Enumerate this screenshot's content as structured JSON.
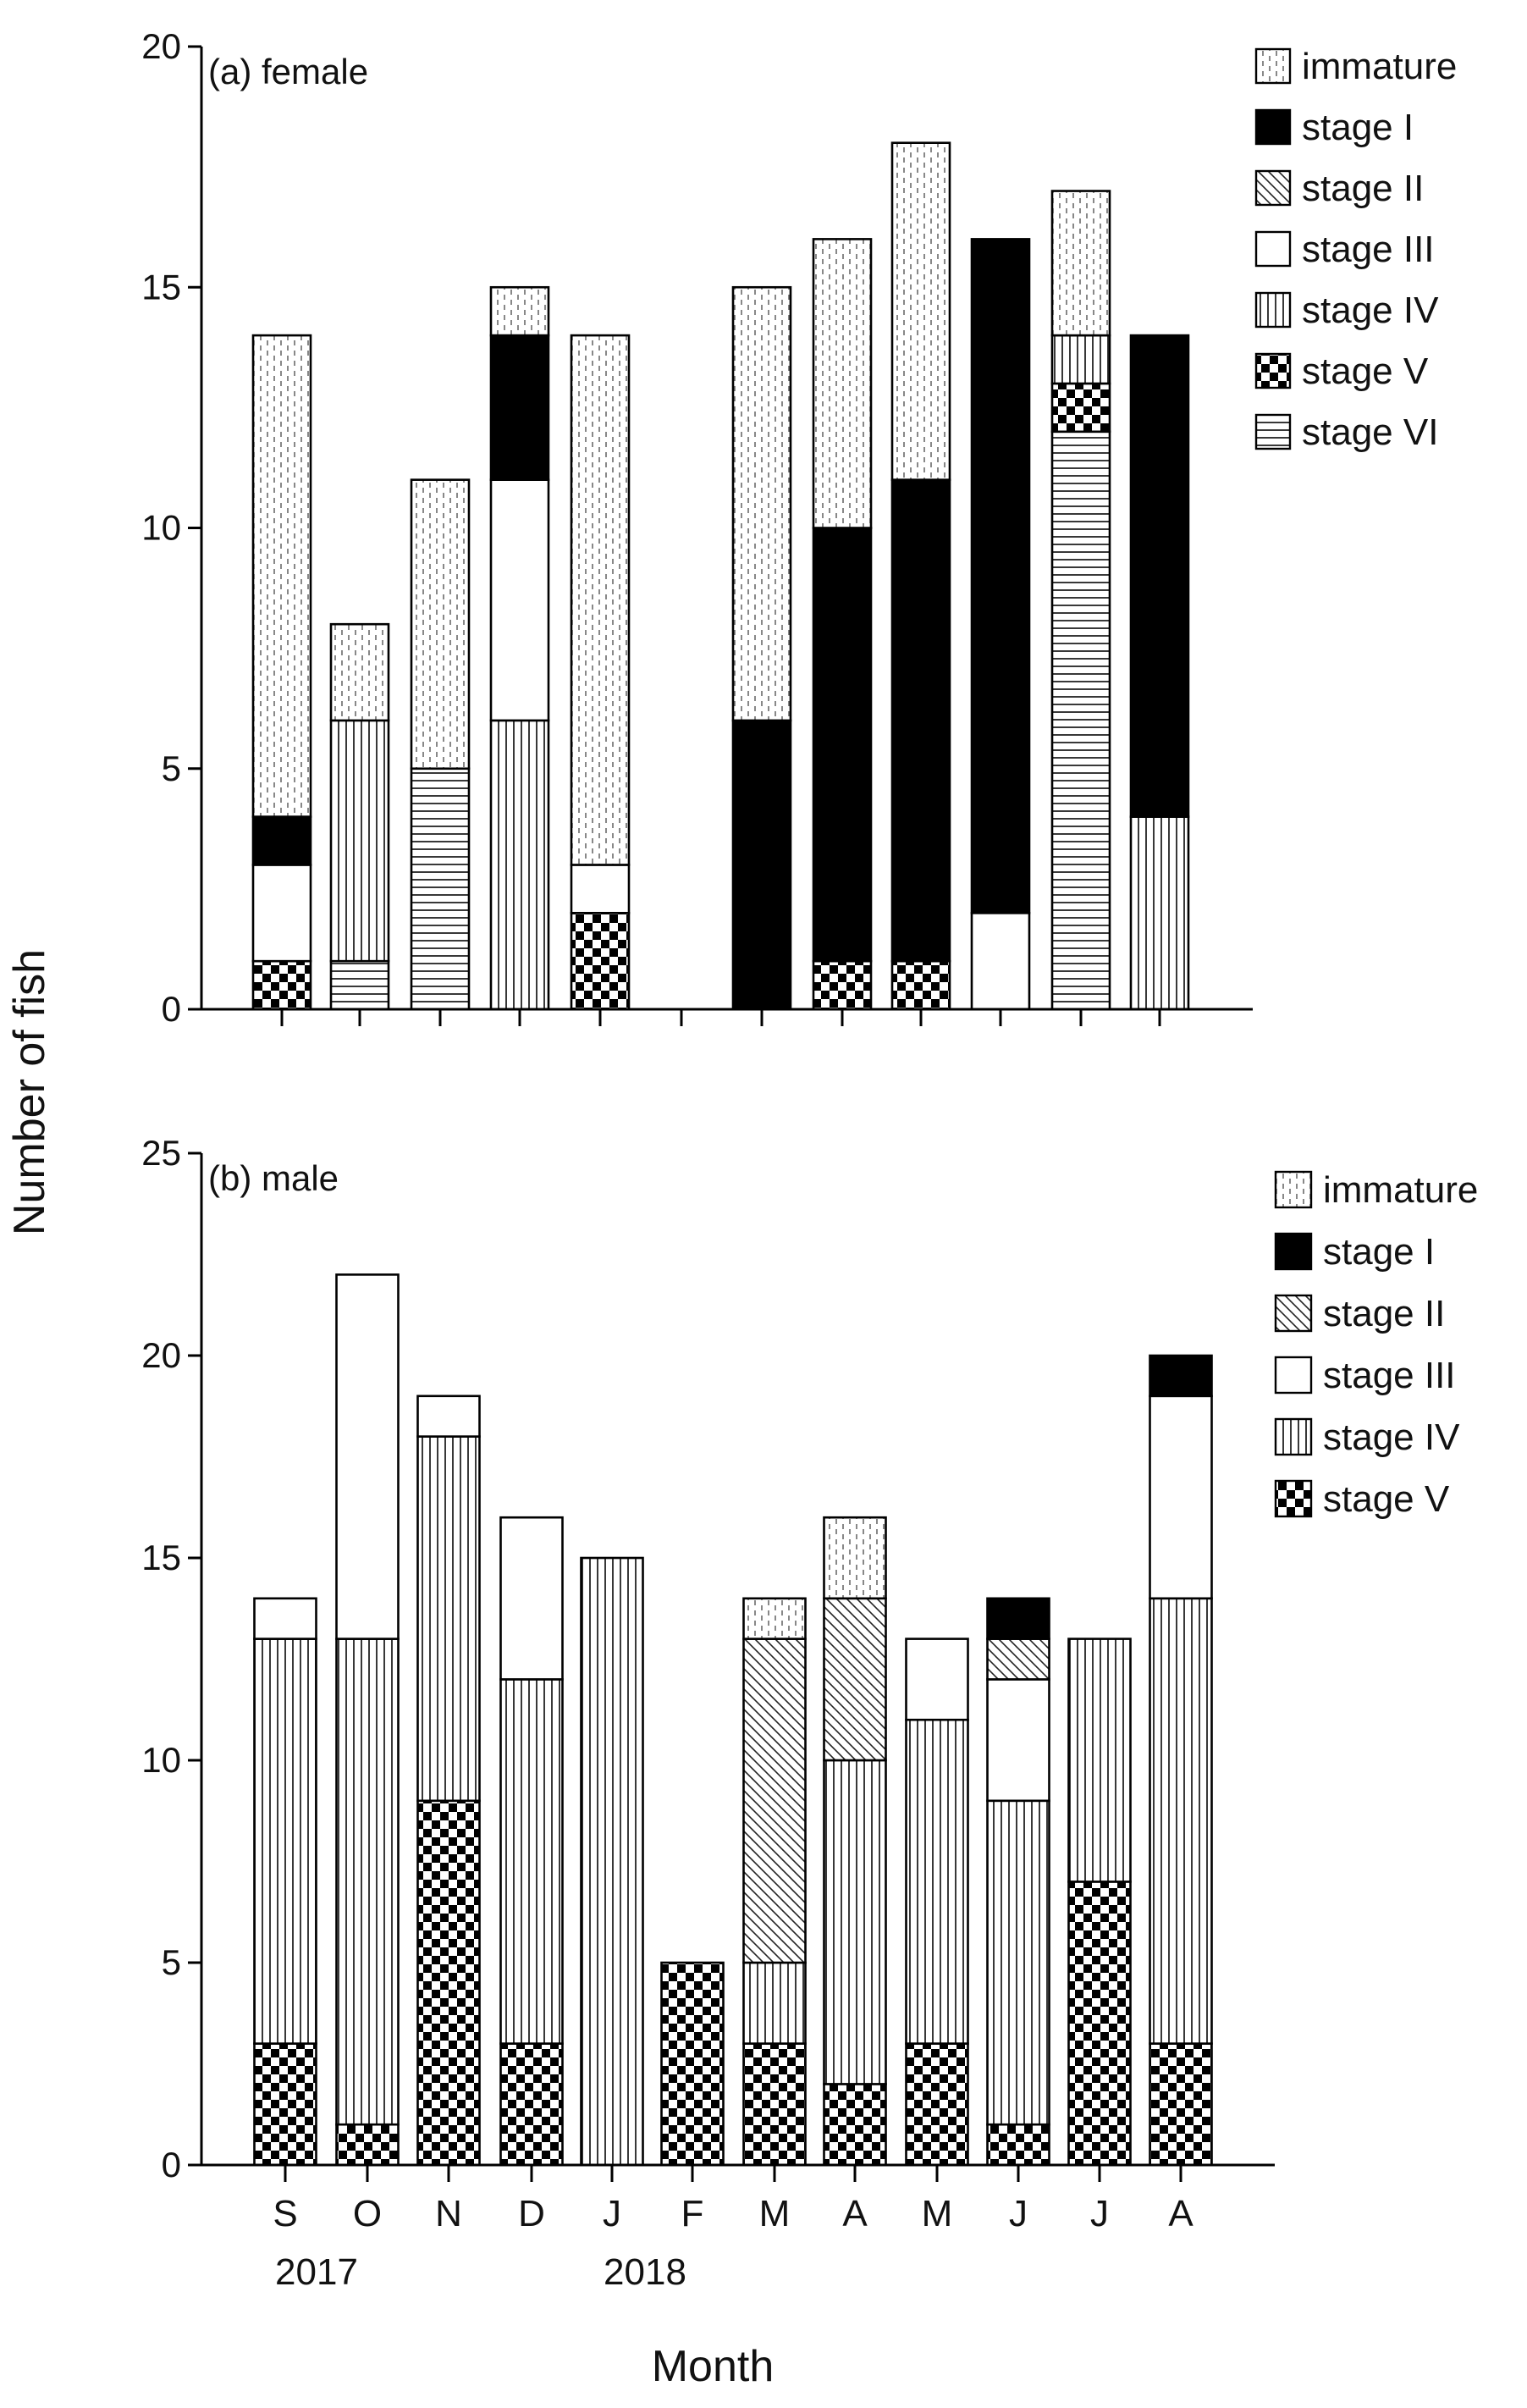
{
  "figure": {
    "y_axis_title": "Number of fish",
    "x_axis_title": "Month",
    "months": [
      "S",
      "O",
      "N",
      "D",
      "J",
      "F",
      "M",
      "A",
      "M",
      "J",
      "J",
      "A"
    ],
    "years": [
      "2017",
      "2018"
    ]
  },
  "chart_data": [
    {
      "type": "bar",
      "stacked": true,
      "panel_label": "(a) female",
      "ylabel": "Number of fish",
      "xlabel": "Month",
      "ylim": [
        0,
        20
      ],
      "yticks": [
        0,
        5,
        10,
        15,
        20
      ],
      "categories": [
        "S",
        "O",
        "N",
        "D",
        "J",
        "F",
        "M",
        "A",
        "M",
        "J",
        "J",
        "A"
      ],
      "legend_position": "top-right",
      "series": [
        {
          "name": "stage VI",
          "pattern": "hlines",
          "values": [
            0,
            1,
            5,
            0,
            0,
            null,
            0,
            0,
            0,
            0,
            12,
            0
          ]
        },
        {
          "name": "stage V",
          "pattern": "checker",
          "values": [
            1,
            0,
            0,
            0,
            2,
            null,
            0,
            1,
            1,
            0,
            1,
            0
          ]
        },
        {
          "name": "stage IV",
          "pattern": "vlines",
          "values": [
            0,
            5,
            0,
            6,
            0,
            null,
            0,
            0,
            0,
            0,
            1,
            4
          ]
        },
        {
          "name": "stage III",
          "pattern": "white",
          "values": [
            2,
            0,
            0,
            5,
            1,
            null,
            0,
            0,
            0,
            2,
            0,
            0
          ]
        },
        {
          "name": "stage II",
          "pattern": "diag",
          "values": [
            0,
            0,
            0,
            0,
            0,
            null,
            0,
            0,
            0,
            0,
            0,
            0
          ]
        },
        {
          "name": "stage I",
          "pattern": "black",
          "values": [
            1,
            0,
            0,
            3,
            0,
            null,
            6,
            9,
            10,
            14,
            0,
            10
          ]
        },
        {
          "name": "immature",
          "pattern": "dots",
          "values": [
            10,
            2,
            6,
            1,
            11,
            null,
            9,
            6,
            7,
            0,
            3,
            0
          ]
        }
      ],
      "legend_order": [
        "immature",
        "stage I",
        "stage II",
        "stage III",
        "stage IV",
        "stage V",
        "stage VI"
      ]
    },
    {
      "type": "bar",
      "stacked": true,
      "panel_label": "(b) male",
      "ylabel": "Number of fish",
      "xlabel": "Month",
      "ylim": [
        0,
        25
      ],
      "yticks": [
        0,
        5,
        10,
        15,
        20,
        25
      ],
      "categories": [
        "S",
        "O",
        "N",
        "D",
        "J",
        "F",
        "M",
        "A",
        "M",
        "J",
        "J",
        "A"
      ],
      "legend_position": "top-right",
      "series": [
        {
          "name": "stage V",
          "pattern": "checker",
          "values": [
            3,
            1,
            9,
            3,
            0,
            5,
            3,
            2,
            3,
            1,
            7,
            3
          ]
        },
        {
          "name": "stage IV",
          "pattern": "vlines",
          "values": [
            10,
            12,
            9,
            9,
            15,
            0,
            2,
            8,
            8,
            8,
            6,
            11
          ]
        },
        {
          "name": "stage III",
          "pattern": "white",
          "values": [
            1,
            9,
            1,
            4,
            0,
            0,
            0,
            0,
            2,
            3,
            0,
            5
          ]
        },
        {
          "name": "stage II",
          "pattern": "diag",
          "values": [
            0,
            0,
            0,
            0,
            0,
            0,
            8,
            4,
            0,
            1,
            0,
            0
          ]
        },
        {
          "name": "stage I",
          "pattern": "black",
          "values": [
            0,
            0,
            0,
            0,
            0,
            0,
            0,
            0,
            0,
            1,
            0,
            1
          ]
        },
        {
          "name": "immature",
          "pattern": "dots",
          "values": [
            0,
            0,
            0,
            0,
            0,
            0,
            1,
            2,
            0,
            0,
            0,
            0
          ]
        }
      ],
      "legend_order": [
        "immature",
        "stage I",
        "stage II",
        "stage III",
        "stage IV",
        "stage V"
      ]
    }
  ]
}
